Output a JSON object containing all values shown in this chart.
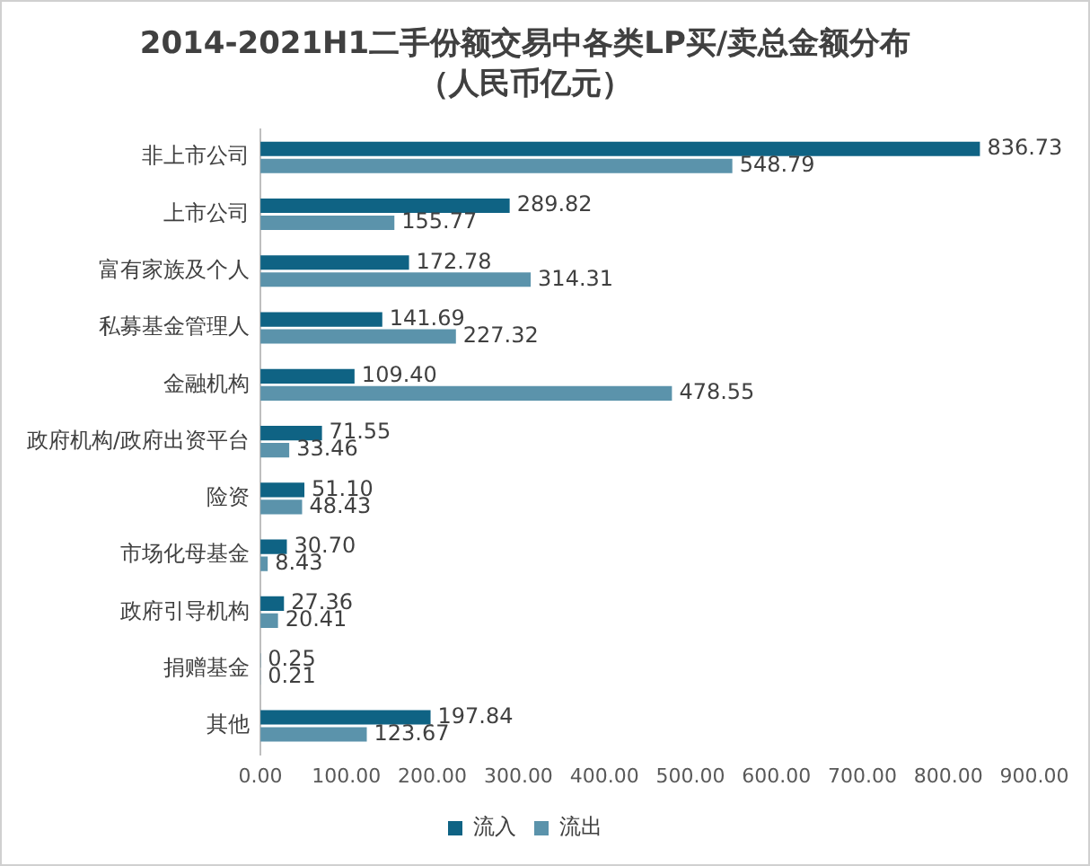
{
  "chart_data": {
    "type": "bar",
    "orientation": "horizontal",
    "title": "2014-2021H1二手份额交易中各类LP买/卖总金额分布",
    "subtitle": "（人民币亿元）",
    "categories": [
      "非上市公司",
      "上市公司",
      "富有家族及个人",
      "私募基金管理人",
      "金融机构",
      "政府机构/政府出资平台",
      "险资",
      "市场化母基金",
      "政府引导机构",
      "捐赠基金",
      "其他"
    ],
    "series": [
      {
        "name": "流入",
        "color": "#0f6384",
        "values": [
          836.73,
          289.82,
          172.78,
          141.69,
          109.4,
          71.55,
          51.1,
          30.7,
          27.36,
          0.25,
          197.84
        ],
        "value_labels": [
          "836.73",
          "289.82",
          "172.78",
          "141.69",
          "109.40",
          "71.55",
          "51.10",
          "30.70",
          "27.36",
          "0.25",
          "197.84"
        ]
      },
      {
        "name": "流出",
        "color": "#5b93ab",
        "values": [
          548.79,
          155.77,
          314.31,
          227.32,
          478.55,
          33.46,
          48.43,
          8.43,
          20.41,
          0.21,
          123.67
        ],
        "value_labels": [
          "548.79",
          "155.77",
          "314.31",
          "227.32",
          "478.55",
          "33.46",
          "48.43",
          "8.43",
          "20.41",
          "0.21",
          "123.67"
        ]
      }
    ],
    "xlim": [
      0,
      900
    ],
    "xticks": [
      {
        "value": 0,
        "label": "0.00"
      },
      {
        "value": 100,
        "label": "100.00"
      },
      {
        "value": 200,
        "label": "200.00"
      },
      {
        "value": 300,
        "label": "300.00"
      },
      {
        "value": 400,
        "label": "400.00"
      },
      {
        "value": 500,
        "label": "500.00"
      },
      {
        "value": 600,
        "label": "600.00"
      },
      {
        "value": 700,
        "label": "700.00"
      },
      {
        "value": 800,
        "label": "800.00"
      },
      {
        "value": 900,
        "label": "900.00"
      }
    ],
    "grid": false,
    "legend": "bottom"
  }
}
